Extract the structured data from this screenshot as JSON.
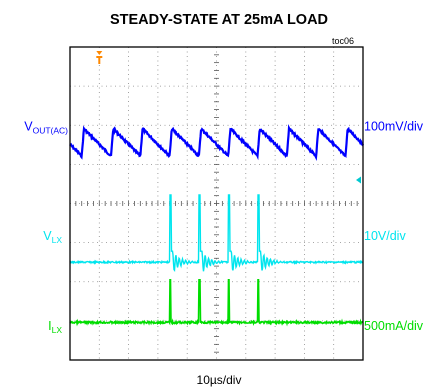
{
  "chart_data": {
    "type": "line",
    "title": "STEADY-STATE AT 25mA LOAD",
    "figure_tag": "toc06",
    "xlabel": "10µs/div",
    "x_divisions": 10,
    "y_divisions": 8,
    "grid": true,
    "switching_edges_div": [
      0.0,
      1.0,
      2.0,
      3.0
    ],
    "channels": [
      {
        "name_main": "V",
        "name_sub": "OUT(AC)",
        "scale": "100mV/div",
        "color": "#0000ff",
        "waveform": "sawtooth",
        "ripple_mVpp": 100,
        "period_us": 10
      },
      {
        "name_main": "V",
        "name_sub": "LX",
        "scale": "10V/div",
        "color": "#00e5ee",
        "waveform": "switching pulse with ringing",
        "peak_V": 20,
        "period_us": 10
      },
      {
        "name_main": "I",
        "name_sub": "LX",
        "scale": "500mA/div",
        "color": "#00dd00",
        "waveform": "current pulse",
        "peak_mA": 750,
        "period_us": 10
      }
    ],
    "markers": {
      "trigger_color": "#ff8800",
      "ground_ref_color": "#00c8d0"
    }
  }
}
